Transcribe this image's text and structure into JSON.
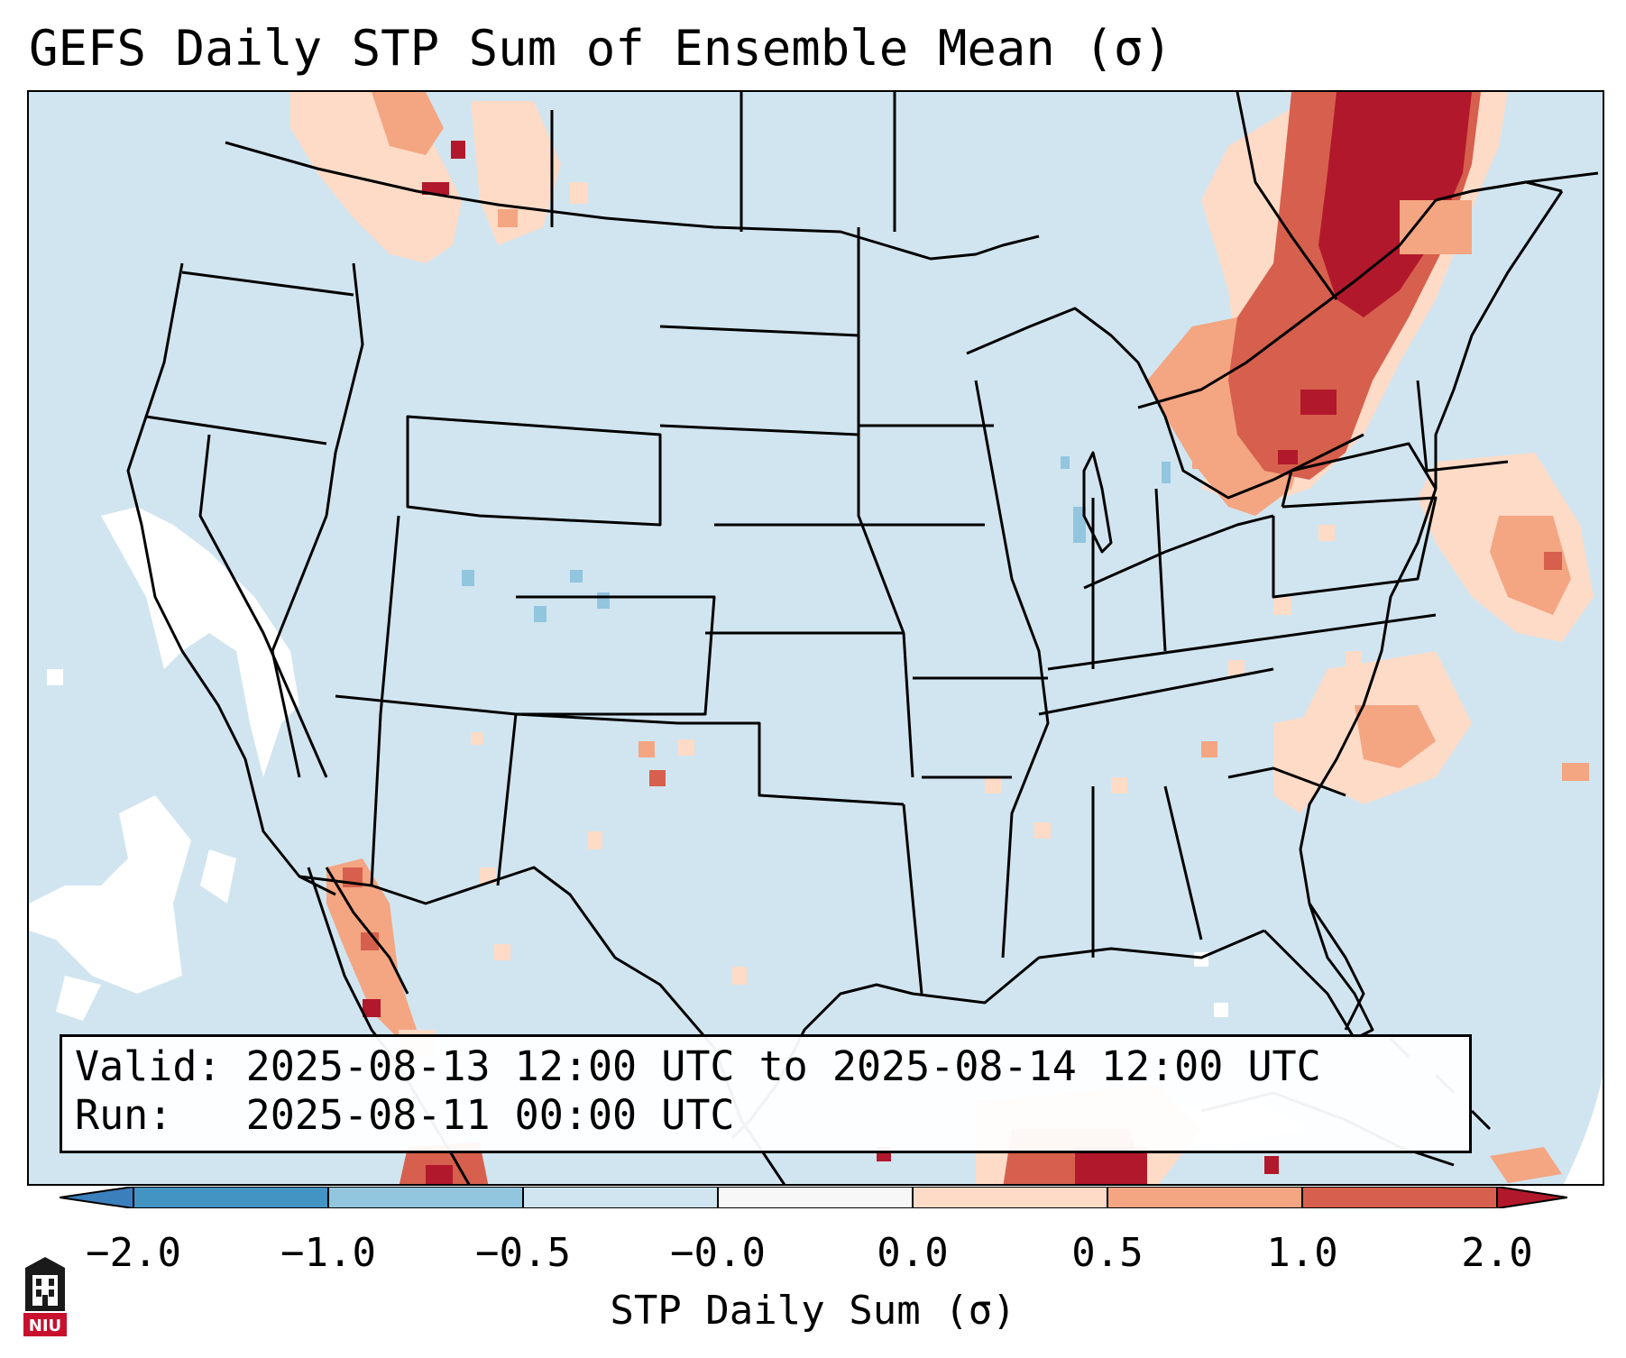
{
  "title": "GEFS Daily STP Sum of Ensemble Mean (σ)",
  "info": {
    "valid_label": "Valid:",
    "valid_text": "2025-08-13 12:00 UTC to 2025-08-14 12:00 UTC",
    "run_label": "Run:",
    "run_text": "2025-08-11 00:00 UTC"
  },
  "colorbar": {
    "label": "STP Daily Sum (σ)",
    "ticks": [
      "−2.0",
      "−1.0",
      "−0.5",
      "−0.0",
      "0.0",
      "0.5",
      "1.0",
      "2.0"
    ],
    "bins": [
      {
        "range": "< -2.0",
        "color": "#3c7fbd"
      },
      {
        "range": "-2.0 to -1.0",
        "color": "#4393c3"
      },
      {
        "range": "-1.0 to -0.5",
        "color": "#92c5de"
      },
      {
        "range": "-0.5 to -0.0",
        "color": "#d1e5f0"
      },
      {
        "range": "-0.0 to 0.0",
        "color": "#f7f7f7"
      },
      {
        "range": "0.0 to 0.5",
        "color": "#fddbc7"
      },
      {
        "range": "0.5 to 1.0",
        "color": "#f4a582"
      },
      {
        "range": "1.0 to 2.0",
        "color": "#d6604d"
      },
      {
        "range": "> 2.0",
        "color": "#b2182b"
      }
    ]
  },
  "map": {
    "region": "Continental United States and adjacent Canada, Mexico, Atlantic",
    "colors": {
      "ocean_fill": "#d1e5f0",
      "neutral": "#ffffff",
      "light_red": "#fddbc7",
      "mid_red": "#f4a582",
      "red": "#d6604d",
      "dark_red": "#b2182b",
      "light_blue": "#92c5de",
      "border": "#000000"
    },
    "areas_of_interest": [
      {
        "name": "Quebec / Ontario / New York / New England",
        "level": "> 2.0"
      },
      {
        "name": "Western Atlantic offshore",
        "level": "0.0 to 1.0"
      },
      {
        "name": "Western Canada / Montana",
        "level": "0.0 to 2.0"
      },
      {
        "name": "Gulf of California / Baja",
        "level": "0.5 to 2.0"
      },
      {
        "name": "Caribbean / Cuba",
        "level": "0.5 to 2.0"
      }
    ]
  },
  "logo": {
    "text": "NIU",
    "color": "#c8102e"
  }
}
